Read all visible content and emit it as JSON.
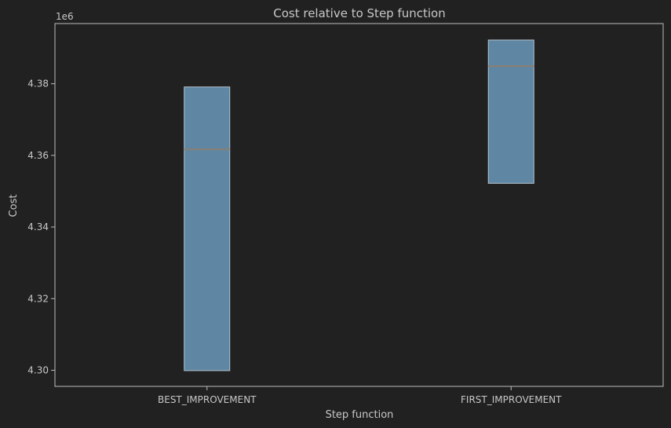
{
  "chart_data": {
    "type": "box",
    "title": "Cost relative to Step function",
    "xlabel": "Step function",
    "ylabel": "Cost",
    "y_offset_label": "1e6",
    "ylim": [
      4.2955,
      4.3968
    ],
    "yticks": [
      "4.30",
      "4.32",
      "4.34",
      "4.36",
      "4.38"
    ],
    "grid": false,
    "categories": [
      "BEST_IMPROVEMENT",
      "FIRST_IMPROVEMENT"
    ],
    "boxes": [
      {
        "category": "BEST_IMPROVEMENT",
        "q1": 4.2999,
        "median": 4.3617,
        "q3": 4.3791
      },
      {
        "category": "FIRST_IMPROVEMENT",
        "q1": 4.3522,
        "median": 4.3849,
        "q3": 4.3922
      }
    ],
    "colors": {
      "background": "#212121",
      "box_fill": "#5f87a4",
      "box_edge": "#b4c3cf",
      "median": "#8a7f72",
      "axes": "#bdbdbd",
      "text": "#c8c8c8"
    }
  }
}
